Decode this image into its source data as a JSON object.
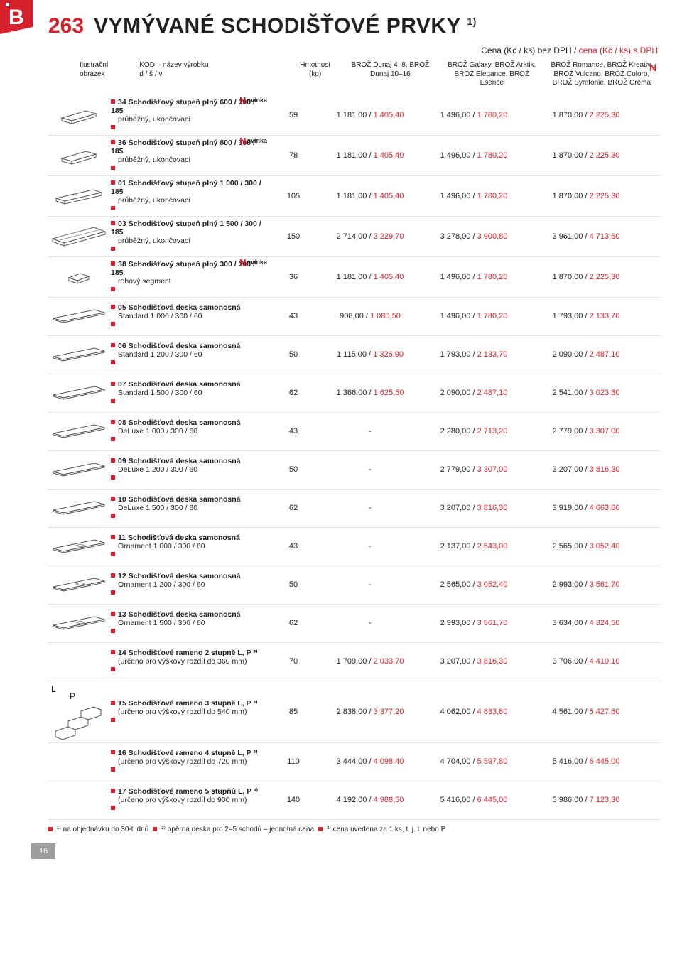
{
  "badge_letter": "B",
  "badge_bg": "#d6212c",
  "page_number": "263",
  "page_title": "VYMÝVANÉ SCHODIŠŤOVÉ PRVKY",
  "title_sup": "1)",
  "price_header_black": "Cena (Kč / ks) bez DPH / ",
  "price_header_red": "cena (Kč / ks) s DPH",
  "header": {
    "illus": "Ilustrační obrázek",
    "kod": "KOD – název výrobku\nd / š / v",
    "hm": "Hmotnost (kg)",
    "p1": "BROŽ Dunaj 4–8, BROŽ Dunaj 10–16",
    "p2": "BROŽ Galaxy, BROŽ Arktik, BROŽ Elegance, BROŽ Esence",
    "p3": "BROŽ Romance, BROŽ Kreativ, BROŽ Vulcano, BROŽ Coloro, BROŽ Symfonie, BROŽ Crema"
  },
  "novinka_label": "ovinka",
  "rows": [
    {
      "svg": "step_parallelogram",
      "name": "34 Schodišťový stupeň plný 600 / 300 / 185",
      "sub": "průběžný, ukončovací",
      "novinka": true,
      "hm": "59",
      "p1b": "1 181,00",
      "p1r": "1 405,40",
      "p2b": "1 496,00",
      "p2r": "1 780,20",
      "p3b": "1 870,00",
      "p3r": "2 225,30"
    },
    {
      "svg": "step_parallelogram",
      "name": "36 Schodišťový stupeň plný 800 / 300 / 185",
      "sub": "průběžný, ukončovací",
      "novinka": true,
      "hm": "78",
      "p1b": "1 181,00",
      "p1r": "1 405,40",
      "p2b": "1 496,00",
      "p2r": "1 780,20",
      "p3b": "1 870,00",
      "p3r": "2 225,30"
    },
    {
      "svg": "step_long",
      "name": "01 Schodišťový stupeň plný 1 000 / 300 / 185",
      "sub": "průběžný, ukončovací",
      "novinka": false,
      "hm": "105",
      "p1b": "1 181,00",
      "p1r": "1 405,40",
      "p2b": "1 496,00",
      "p2r": "1 780,20",
      "p3b": "1 870,00",
      "p3r": "2 225,30"
    },
    {
      "svg": "step_wide",
      "name": "03 Schodišťový stupeň plný 1 500 / 300 / 185",
      "sub": "průběžný, ukončovací",
      "novinka": false,
      "hm": "150",
      "p1b": "2 714,00",
      "p1r": "3 229,70",
      "p2b": "3 278,00",
      "p2r": "3 900,80",
      "p3b": "3 961,00",
      "p3r": "4 713,60"
    },
    {
      "svg": "step_square",
      "name": "38 Schodišťový stupeň plný 300 / 300 / 185",
      "sub": "rohový segment",
      "novinka": true,
      "hm": "36",
      "p1b": "1 181,00",
      "p1r": "1 405,40",
      "p2b": "1 496,00",
      "p2r": "1 780,20",
      "p3b": "1 870,00",
      "p3r": "2 225,30"
    },
    {
      "svg": "slab",
      "name": "05 Schodišťová deska samonosná",
      "sub": "Standard 1 000 / 300 / 60",
      "novinka": false,
      "hm": "43",
      "p1b": "908,00",
      "p1r": "1 080,50",
      "p2b": "1 496,00",
      "p2r": "1 780,20",
      "p3b": "1 793,00",
      "p3r": "2 133,70"
    },
    {
      "svg": "slab",
      "name": "06 Schodišťová deska samonosná",
      "sub": "Standard 1 200 / 300 / 60",
      "novinka": false,
      "hm": "50",
      "p1b": "1 115,00",
      "p1r": "1 326,90",
      "p2b": "1 793,00",
      "p2r": "2 133,70",
      "p3b": "2 090,00",
      "p3r": "2 487,10"
    },
    {
      "svg": "slab",
      "name": "07 Schodišťová deska samonosná",
      "sub": "Standard 1 500 / 300 / 60",
      "novinka": false,
      "hm": "62",
      "p1b": "1 366,00",
      "p1r": "1 625,50",
      "p2b": "2 090,00",
      "p2r": "2 487,10",
      "p3b": "2 541,00",
      "p3r": "3 023,80"
    },
    {
      "svg": "slab",
      "name": "08 Schodišťová deska samonosná",
      "sub": "DeLuxe 1 000 / 300 / 60",
      "novinka": false,
      "hm": "43",
      "p1b": "-",
      "p1r": "",
      "p2b": "2 280,00",
      "p2r": "2 713,20",
      "p3b": "2 779,00",
      "p3r": "3 307,00"
    },
    {
      "svg": "slab",
      "name": "09 Schodišťová deska samonosná",
      "sub": "DeLuxe 1 200 / 300 / 60",
      "novinka": false,
      "hm": "50",
      "p1b": "-",
      "p1r": "",
      "p2b": "2 779,00",
      "p2r": "3 307,00",
      "p3b": "3 207,00",
      "p3r": "3 816,30"
    },
    {
      "svg": "slab",
      "name": "10 Schodišťová deska samonosná",
      "sub": "DeLuxe 1 500 / 300 / 60",
      "novinka": false,
      "hm": "62",
      "p1b": "-",
      "p1r": "",
      "p2b": "3 207,00",
      "p2r": "3 816,30",
      "p3b": "3 919,00",
      "p3r": "4 663,60"
    },
    {
      "svg": "slab_orn",
      "name": "11 Schodišťová deska samonosná",
      "sub": "Ornament 1 000 / 300 / 60",
      "novinka": false,
      "hm": "43",
      "p1b": "-",
      "p1r": "",
      "p2b": "2 137,00",
      "p2r": "2 543,00",
      "p3b": "2 565,00",
      "p3r": "3 052,40"
    },
    {
      "svg": "slab_orn",
      "name": "12 Schodišťová deska samonosná",
      "sub": "Ornament 1 200 / 300 / 60",
      "novinka": false,
      "hm": "50",
      "p1b": "-",
      "p1r": "",
      "p2b": "2 565,00",
      "p2r": "3 052,40",
      "p3b": "2 993,00",
      "p3r": "3 561,70"
    },
    {
      "svg": "slab_orn",
      "name": "13 Schodišťová deska samonosná",
      "sub": "Ornament 1 500 / 300 / 60",
      "novinka": false,
      "hm": "62",
      "p1b": "-",
      "p1r": "",
      "p2b": "2 993,00",
      "p2r": "3 561,70",
      "p3b": "3 634,00",
      "p3r": "4 324,50"
    },
    {
      "svg": "none",
      "name": "14 Schodišťové rameno 2 stupně L, P ³⁾",
      "sub": "(určeno pro výškový rozdíl do 360 mm)",
      "novinka": false,
      "hm": "70",
      "p1b": "1 709,00",
      "p1r": "2 033,70",
      "p2b": "3 207,00",
      "p2r": "3 816,30",
      "p3b": "3 706,00",
      "p3r": "4 410,10"
    },
    {
      "svg": "stairs",
      "name": "15 Schodišťové rameno 3 stupně L, P ³⁾",
      "sub": "(určeno pro výškový rozdíl do 540 mm)",
      "novinka": false,
      "hm": "85",
      "p1b": "2 838,00",
      "p1r": "3 377,20",
      "p2b": "4 062,00",
      "p2r": "4 833,80",
      "p3b": "4 561,00",
      "p3r": "5 427,60",
      "lp": true
    },
    {
      "svg": "none",
      "name": "16 Schodišťové rameno 4 stupně L, P ³⁾",
      "sub": "(určeno pro výškový rozdíl do 720 mm)",
      "novinka": false,
      "hm": "110",
      "p1b": "3 444,00",
      "p1r": "4 098,40",
      "p2b": "4 704,00",
      "p2r": "5 597,80",
      "p3b": "5 416,00",
      "p3r": "6 445,00"
    },
    {
      "svg": "none",
      "name": "17 Schodišťové rameno 5 stupňů L, P ³⁾",
      "sub": "(určeno pro výškový rozdíl do 900 mm)",
      "novinka": false,
      "hm": "140",
      "p1b": "4 192,00",
      "p1r": "4 988,50",
      "p2b": "5 416,00",
      "p2r": "6 445,00",
      "p3b": "5 986,00",
      "p3r": "7 123,30"
    }
  ],
  "footnotes": {
    "f1": "¹⁾ na objednávku do 30-ti dnů",
    "f2": "²⁾ opěrná deska pro 2–5 schodů – jednotná cena",
    "f3": "³⁾ cena uvedena za 1 ks, t. j. L nebo P"
  },
  "foot_page": "16",
  "lp": {
    "L": "L",
    "P": "P"
  }
}
